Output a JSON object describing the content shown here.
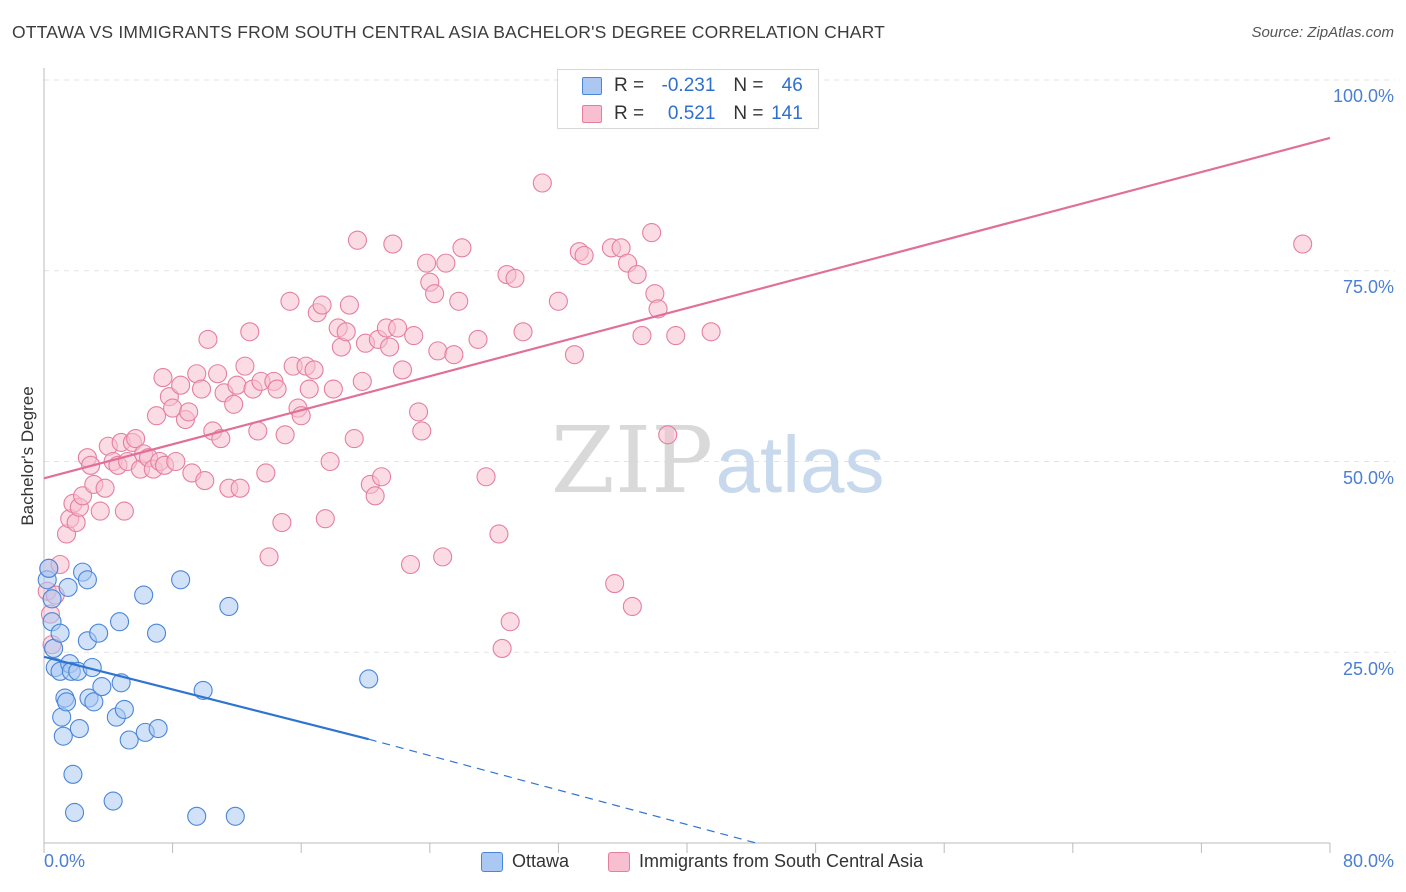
{
  "title": "OTTAWA VS IMMIGRANTS FROM SOUTH CENTRAL ASIA BACHELOR'S DEGREE CORRELATION CHART",
  "source": "Source: ZipAtlas.com",
  "watermark": {
    "zip": "ZIP",
    "atlas": "atlas"
  },
  "colors": {
    "ottawa_fill": "#aac8f2",
    "ottawa_stroke": "#4a86d8",
    "ottawa_line": "#2f74d0",
    "immigrants_fill": "#f7bfd0",
    "immigrants_stroke": "#e57fa0",
    "immigrants_line": "#e0709a",
    "grid": "#e3e3e3",
    "axis_text": "#4a7fd4"
  },
  "stats": {
    "rows": [
      {
        "r_label": "R =",
        "r_value": "-0.231",
        "n_label": "N =",
        "n_value": "46"
      },
      {
        "r_label": "R =",
        "r_value": "0.521",
        "n_label": "N =",
        "n_value": "141"
      }
    ]
  },
  "legend": {
    "items": [
      "Ottawa",
      "Immigrants from South Central Asia"
    ]
  },
  "chart_data": {
    "type": "scatter",
    "title": "OTTAWA VS IMMIGRANTS FROM SOUTH CENTRAL ASIA BACHELOR'S DEGREE CORRELATION CHART",
    "xlabel": "",
    "ylabel": "Bachelor's Degree",
    "xlim": [
      0,
      80
    ],
    "ylim": [
      0,
      100
    ],
    "x_ticks": [
      "0.0%",
      "80.0%"
    ],
    "y_ticks": [
      "25.0%",
      "50.0%",
      "75.0%",
      "100.0%"
    ],
    "y_tick_values": [
      25,
      50,
      75,
      100
    ],
    "grid": true,
    "legend_position": "bottom",
    "series": [
      {
        "name": "Ottawa",
        "trend": {
          "x": [
            0,
            20.2
          ],
          "y": [
            24.4,
            13.6
          ],
          "dashed_to": [
            44.3,
            0
          ]
        },
        "points": [
          [
            0.2,
            34.5
          ],
          [
            0.3,
            36.0
          ],
          [
            0.5,
            32.0
          ],
          [
            0.5,
            29.0
          ],
          [
            0.6,
            25.5
          ],
          [
            0.7,
            23.0
          ],
          [
            1.0,
            27.5
          ],
          [
            1.0,
            22.5
          ],
          [
            1.1,
            16.5
          ],
          [
            1.2,
            14.0
          ],
          [
            1.3,
            19.0
          ],
          [
            1.4,
            18.5
          ],
          [
            1.5,
            33.5
          ],
          [
            1.6,
            23.5
          ],
          [
            1.7,
            22.5
          ],
          [
            1.8,
            9.0
          ],
          [
            1.9,
            4.0
          ],
          [
            2.1,
            22.5
          ],
          [
            2.2,
            15.0
          ],
          [
            2.4,
            35.5
          ],
          [
            2.7,
            26.5
          ],
          [
            2.7,
            34.5
          ],
          [
            2.8,
            19.0
          ],
          [
            3.0,
            23.0
          ],
          [
            3.1,
            18.5
          ],
          [
            3.4,
            27.5
          ],
          [
            3.6,
            20.5
          ],
          [
            4.3,
            5.5
          ],
          [
            4.5,
            16.5
          ],
          [
            4.7,
            29.0
          ],
          [
            4.8,
            21.0
          ],
          [
            5.0,
            17.5
          ],
          [
            5.3,
            13.5
          ],
          [
            6.2,
            32.5
          ],
          [
            6.3,
            14.5
          ],
          [
            7.0,
            27.5
          ],
          [
            7.1,
            15.0
          ],
          [
            8.5,
            34.5
          ],
          [
            9.5,
            3.5
          ],
          [
            9.9,
            20.0
          ],
          [
            11.5,
            31.0
          ],
          [
            11.9,
            3.5
          ],
          [
            20.2,
            21.5
          ]
        ]
      },
      {
        "name": "Immigrants from South Central Asia",
        "trend": {
          "x": [
            0,
            80
          ],
          "y": [
            47.8,
            92.4
          ]
        },
        "points": [
          [
            0.2,
            33.0
          ],
          [
            0.3,
            36.0
          ],
          [
            0.4,
            30.0
          ],
          [
            0.5,
            26.0
          ],
          [
            0.7,
            32.5
          ],
          [
            1.0,
            36.5
          ],
          [
            1.4,
            40.5
          ],
          [
            1.6,
            42.5
          ],
          [
            1.8,
            44.5
          ],
          [
            2.0,
            42.0
          ],
          [
            2.2,
            44.0
          ],
          [
            2.4,
            45.5
          ],
          [
            2.7,
            50.5
          ],
          [
            2.9,
            49.5
          ],
          [
            3.1,
            47.0
          ],
          [
            3.5,
            43.5
          ],
          [
            3.8,
            46.5
          ],
          [
            4.0,
            52.0
          ],
          [
            4.3,
            50.0
          ],
          [
            4.6,
            49.5
          ],
          [
            4.8,
            52.5
          ],
          [
            5.0,
            43.5
          ],
          [
            5.2,
            50.0
          ],
          [
            5.5,
            52.5
          ],
          [
            5.7,
            53.0
          ],
          [
            6.0,
            49.0
          ],
          [
            6.2,
            51.0
          ],
          [
            6.5,
            50.5
          ],
          [
            6.8,
            49.0
          ],
          [
            7.0,
            56.0
          ],
          [
            7.2,
            50.0
          ],
          [
            7.4,
            61.0
          ],
          [
            7.5,
            49.5
          ],
          [
            7.8,
            58.5
          ],
          [
            8.0,
            57.0
          ],
          [
            8.2,
            50.0
          ],
          [
            8.5,
            60.0
          ],
          [
            8.8,
            55.5
          ],
          [
            9.0,
            56.5
          ],
          [
            9.2,
            48.5
          ],
          [
            9.5,
            61.5
          ],
          [
            9.8,
            59.5
          ],
          [
            10.0,
            47.5
          ],
          [
            10.2,
            66.0
          ],
          [
            10.5,
            54.0
          ],
          [
            10.8,
            61.5
          ],
          [
            11.0,
            53.0
          ],
          [
            11.2,
            59.0
          ],
          [
            11.5,
            46.5
          ],
          [
            11.8,
            57.5
          ],
          [
            12.0,
            60.0
          ],
          [
            12.2,
            46.5
          ],
          [
            12.5,
            62.5
          ],
          [
            12.8,
            67.0
          ],
          [
            13.0,
            59.5
          ],
          [
            13.3,
            54.0
          ],
          [
            13.5,
            60.5
          ],
          [
            13.8,
            48.5
          ],
          [
            14.0,
            37.5
          ],
          [
            14.3,
            60.5
          ],
          [
            14.5,
            59.5
          ],
          [
            14.8,
            42.0
          ],
          [
            15.0,
            53.5
          ],
          [
            15.3,
            71.0
          ],
          [
            15.5,
            62.5
          ],
          [
            15.8,
            57.0
          ],
          [
            16.0,
            56.0
          ],
          [
            16.3,
            62.5
          ],
          [
            16.5,
            59.5
          ],
          [
            16.8,
            62.0
          ],
          [
            17.0,
            69.5
          ],
          [
            17.3,
            70.5
          ],
          [
            17.5,
            42.5
          ],
          [
            17.8,
            50.0
          ],
          [
            18.0,
            59.5
          ],
          [
            18.3,
            67.5
          ],
          [
            18.5,
            65.0
          ],
          [
            18.8,
            67.0
          ],
          [
            19.0,
            70.5
          ],
          [
            19.3,
            53.0
          ],
          [
            19.5,
            79.0
          ],
          [
            19.8,
            60.5
          ],
          [
            20.0,
            65.5
          ],
          [
            20.3,
            47.0
          ],
          [
            20.6,
            45.5
          ],
          [
            20.8,
            66.0
          ],
          [
            21.0,
            48.0
          ],
          [
            21.3,
            67.5
          ],
          [
            21.5,
            65.0
          ],
          [
            21.7,
            78.5
          ],
          [
            22.0,
            67.5
          ],
          [
            22.3,
            62.0
          ],
          [
            22.8,
            36.5
          ],
          [
            23.0,
            66.5
          ],
          [
            23.3,
            56.5
          ],
          [
            23.5,
            54.0
          ],
          [
            23.8,
            76.0
          ],
          [
            24.0,
            73.5
          ],
          [
            24.3,
            72.0
          ],
          [
            24.5,
            64.5
          ],
          [
            24.8,
            37.5
          ],
          [
            25.0,
            76.0
          ],
          [
            25.5,
            64.0
          ],
          [
            25.8,
            71.0
          ],
          [
            26.0,
            78.0
          ],
          [
            27.0,
            66.0
          ],
          [
            27.5,
            48.0
          ],
          [
            28.3,
            40.5
          ],
          [
            28.5,
            25.5
          ],
          [
            28.8,
            74.5
          ],
          [
            29.0,
            29.0
          ],
          [
            29.3,
            74.0
          ],
          [
            29.8,
            67.0
          ],
          [
            31.0,
            86.5
          ],
          [
            32.0,
            71.0
          ],
          [
            33.0,
            64.0
          ],
          [
            33.3,
            77.5
          ],
          [
            33.6,
            77.0
          ],
          [
            35.3,
            78.0
          ],
          [
            35.5,
            34.0
          ],
          [
            35.9,
            78.0
          ],
          [
            36.3,
            76.0
          ],
          [
            36.6,
            31.0
          ],
          [
            36.9,
            74.5
          ],
          [
            37.2,
            66.5
          ],
          [
            37.8,
            80.0
          ],
          [
            38.0,
            72.0
          ],
          [
            38.2,
            70.0
          ],
          [
            38.8,
            53.5
          ],
          [
            39.3,
            66.5
          ],
          [
            41.5,
            67.0
          ],
          [
            78.3,
            78.5
          ]
        ]
      }
    ]
  }
}
